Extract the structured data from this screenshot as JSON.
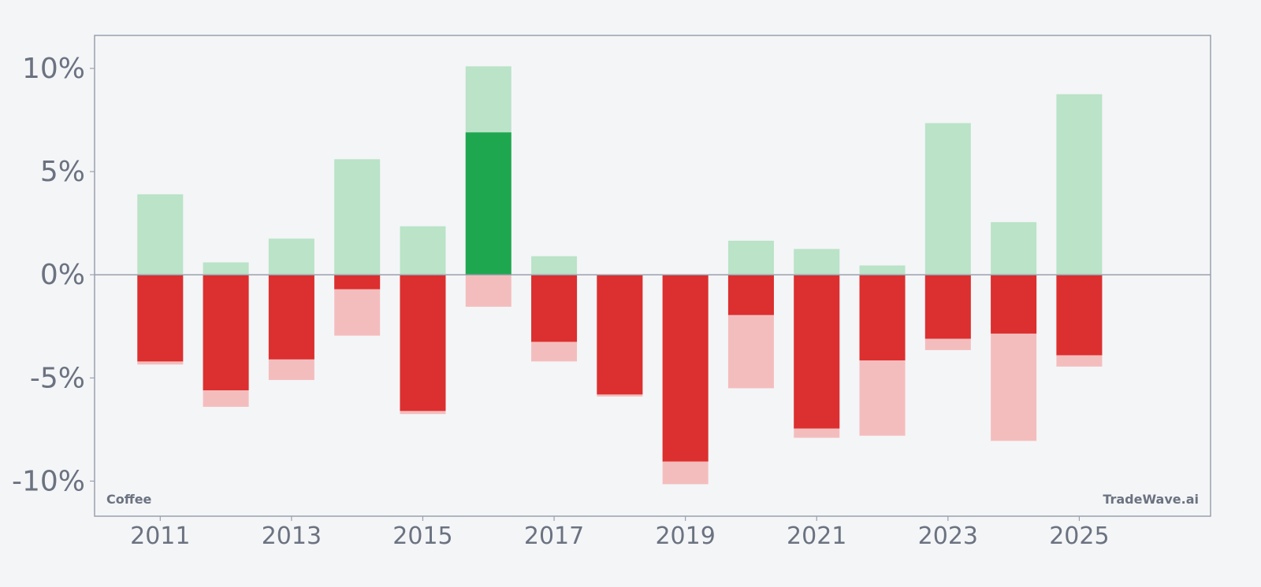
{
  "chart_data": {
    "type": "bar",
    "watermark_left": "Coffee",
    "watermark_right": "TradeWave.ai",
    "xlim": [
      2010,
      2027
    ],
    "ylim": [
      -11.7,
      11.6
    ],
    "x_ticks": [
      2011,
      2013,
      2015,
      2017,
      2019,
      2021,
      2023,
      2025
    ],
    "y_ticks": [
      {
        "value": 10,
        "label": "10%"
      },
      {
        "value": 5,
        "label": "5%"
      },
      {
        "value": 0,
        "label": "0%"
      },
      {
        "value": -5,
        "label": "-5%"
      },
      {
        "value": -10,
        "label": "-10%"
      }
    ],
    "grid": false,
    "colors": {
      "background": "#f4f5f7",
      "frame": "#9aa0ad",
      "zero_line": "#9aa0ad",
      "tick_text": "#6b7280",
      "positive_range": "#bae3c8",
      "negative_range": "#f4bdbd",
      "positive_value": "#1fa750",
      "negative_value": "#dc2f2f"
    },
    "bars": [
      {
        "year": 2011,
        "max": 3.9,
        "min": -4.35,
        "value": -4.2
      },
      {
        "year": 2012,
        "max": 0.6,
        "min": -6.4,
        "value": -5.6
      },
      {
        "year": 2013,
        "max": 1.75,
        "min": -5.1,
        "value": -4.1
      },
      {
        "year": 2014,
        "max": 5.6,
        "min": -2.95,
        "value": -0.7
      },
      {
        "year": 2015,
        "max": 2.35,
        "min": -6.75,
        "value": -6.6
      },
      {
        "year": 2016,
        "max": 10.1,
        "min": -1.55,
        "value": 6.9
      },
      {
        "year": 2017,
        "max": 0.9,
        "min": -4.2,
        "value": -3.25
      },
      {
        "year": 2018,
        "max": 0.0,
        "min": -5.9,
        "value": -5.8
      },
      {
        "year": 2019,
        "max": 0.0,
        "min": -10.15,
        "value": -9.05
      },
      {
        "year": 2020,
        "max": 1.65,
        "min": -5.5,
        "value": -1.95
      },
      {
        "year": 2021,
        "max": 1.25,
        "min": -7.9,
        "value": -7.45
      },
      {
        "year": 2022,
        "max": 0.45,
        "min": -7.8,
        "value": -4.15
      },
      {
        "year": 2023,
        "max": 7.35,
        "min": -3.65,
        "value": -3.1
      },
      {
        "year": 2024,
        "max": 2.55,
        "min": -8.05,
        "value": -2.85
      },
      {
        "year": 2025,
        "max": 8.75,
        "min": -4.45,
        "value": -3.9
      }
    ]
  }
}
